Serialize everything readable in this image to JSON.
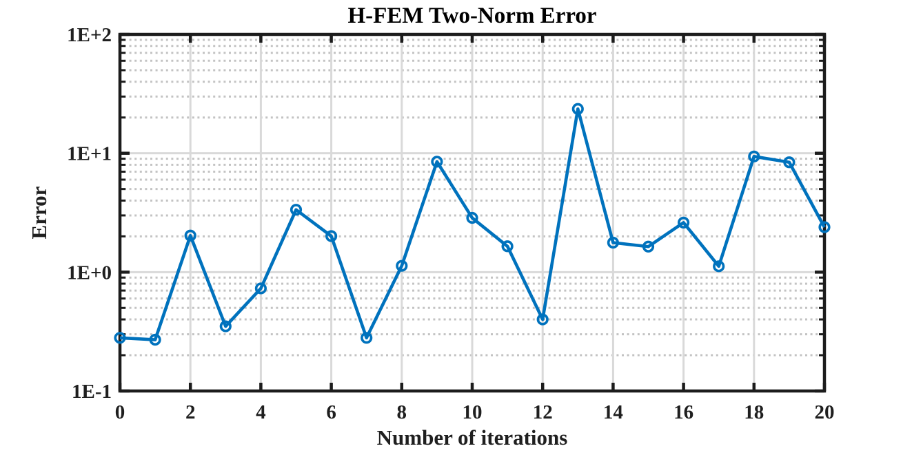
{
  "chart_data": {
    "type": "line",
    "title": "H-FEM Two-Norm Error",
    "xlabel": "Number of iterations",
    "ylabel": "Error",
    "series": [
      {
        "name": "two-norm-error",
        "x": [
          0,
          1,
          2,
          3,
          4,
          5,
          6,
          7,
          8,
          9,
          10,
          11,
          12,
          13,
          14,
          15,
          16,
          17,
          18,
          19,
          20
        ],
        "values": [
          0.28,
          0.27,
          2.03,
          0.35,
          0.73,
          3.35,
          2.01,
          0.28,
          1.13,
          8.5,
          2.86,
          1.65,
          0.4,
          23.6,
          1.77,
          1.64,
          2.61,
          1.12,
          9.4,
          8.4,
          2.39
        ]
      }
    ],
    "xlim": [
      0,
      20
    ],
    "ylim": [
      0.1,
      100
    ],
    "yscale": "log",
    "x_ticks": [
      0,
      2,
      4,
      6,
      8,
      10,
      12,
      14,
      16,
      18,
      20
    ],
    "x_tick_labels": [
      "0",
      "2",
      "4",
      "6",
      "8",
      "10",
      "12",
      "14",
      "16",
      "18",
      "20"
    ],
    "y_tick_values": [
      0.1,
      1,
      10,
      100
    ],
    "y_tick_labels": [
      "1E-1",
      "1E+0",
      "1E+1",
      "1E+2"
    ],
    "grid": {
      "major": true,
      "minor": true,
      "minor_style": "dotted"
    },
    "legend": "none",
    "marker": "open-circle",
    "colors": {
      "line": "#0072BD",
      "major_grid": "#d9d9d9",
      "minor_grid": "#c3c3c3",
      "axis": "#1c1c1c",
      "tick_text": "#1f1f1f",
      "title_text": "#000000",
      "background": "#ffffff"
    }
  }
}
